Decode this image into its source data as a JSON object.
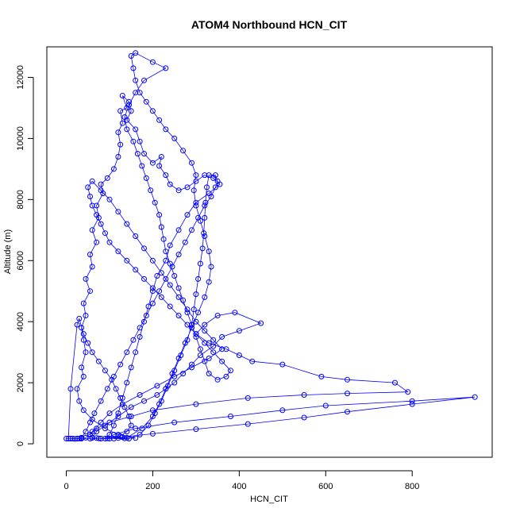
{
  "chart_data": {
    "type": "line",
    "title": "ATOM4 Northbound HCN_CIT",
    "xlabel": "HCN_CIT",
    "ylabel": "Altitude (m)",
    "xlim": [
      -45,
      985
    ],
    "ylim": [
      -440,
      13000
    ],
    "x_ticks": [
      0,
      200,
      400,
      600,
      800
    ],
    "y_ticks": [
      0,
      2000,
      4000,
      6000,
      8000,
      10000,
      12000
    ],
    "colors": {
      "series": "#0000ff",
      "axis": "#000000"
    },
    "marker": "open-circle",
    "grid": false,
    "series": [
      {
        "values": [
          [
            0,
            170
          ],
          [
            10,
            170
          ],
          [
            20,
            160
          ],
          [
            35,
            180
          ],
          [
            55,
            170
          ],
          [
            75,
            180
          ],
          [
            100,
            170
          ],
          [
            120,
            190
          ],
          [
            135,
            180
          ],
          [
            160,
            190
          ],
          [
            120,
            300
          ],
          [
            90,
            500
          ],
          [
            60,
            800
          ],
          [
            40,
            1100
          ],
          [
            30,
            1400
          ],
          [
            25,
            1800
          ],
          [
            40,
            2200
          ],
          [
            35,
            2500
          ],
          [
            45,
            3000
          ],
          [
            40,
            3400
          ],
          [
            35,
            3800
          ],
          [
            45,
            4200
          ],
          [
            40,
            4600
          ],
          [
            55,
            5000
          ],
          [
            45,
            5400
          ],
          [
            60,
            5800
          ],
          [
            55,
            6200
          ],
          [
            70,
            6600
          ],
          [
            60,
            7000
          ],
          [
            75,
            7400
          ],
          [
            70,
            7800
          ],
          [
            85,
            8200
          ],
          [
            80,
            8500
          ],
          [
            95,
            8700
          ],
          [
            110,
            9000
          ],
          [
            120,
            9400
          ],
          [
            125,
            9800
          ],
          [
            120,
            10200
          ],
          [
            130,
            10500
          ],
          [
            125,
            10900
          ],
          [
            140,
            11000
          ],
          [
            130,
            11400
          ],
          [
            145,
            11200
          ],
          [
            150,
            10900
          ],
          [
            140,
            10600
          ],
          [
            160,
            10300
          ],
          [
            170,
            9900
          ],
          [
            180,
            9500
          ],
          [
            200,
            9200
          ],
          [
            220,
            9400
          ],
          [
            215,
            9100
          ],
          [
            230,
            8800
          ],
          [
            240,
            8500
          ],
          [
            260,
            8300
          ],
          [
            280,
            8400
          ],
          [
            300,
            8600
          ],
          [
            320,
            8800
          ],
          [
            340,
            8700
          ],
          [
            355,
            8500
          ],
          [
            330,
            8200
          ],
          [
            300,
            7900
          ],
          [
            280,
            7500
          ],
          [
            260,
            7000
          ],
          [
            240,
            6500
          ],
          [
            230,
            6000
          ],
          [
            210,
            5500
          ],
          [
            200,
            5000
          ],
          [
            190,
            4500
          ],
          [
            180,
            4000
          ],
          [
            170,
            3500
          ],
          [
            160,
            3000
          ],
          [
            150,
            2500
          ],
          [
            140,
            2000
          ],
          [
            130,
            1500
          ],
          [
            120,
            1000
          ],
          [
            110,
            600
          ],
          [
            100,
            300
          ],
          [
            90,
            170
          ],
          [
            80,
            170
          ],
          [
            70,
            190
          ],
          [
            60,
            200
          ],
          [
            55,
            300
          ],
          [
            70,
            500
          ],
          [
            100,
            700
          ],
          [
            150,
            900
          ],
          [
            200,
            1100
          ],
          [
            300,
            1300
          ],
          [
            420,
            1500
          ],
          [
            550,
            1600
          ],
          [
            650,
            1650
          ],
          [
            790,
            1700
          ],
          [
            760,
            2000
          ],
          [
            650,
            2100
          ],
          [
            590,
            2200
          ],
          [
            500,
            2600
          ],
          [
            430,
            2700
          ],
          [
            400,
            2900
          ],
          [
            370,
            3100
          ],
          [
            330,
            3300
          ],
          [
            300,
            3600
          ],
          [
            320,
            3900
          ],
          [
            350,
            4200
          ],
          [
            390,
            4300
          ],
          [
            450,
            3950
          ],
          [
            400,
            3700
          ],
          [
            360,
            3500
          ],
          [
            340,
            3200
          ],
          [
            310,
            2900
          ],
          [
            290,
            2600
          ],
          [
            270,
            2300
          ],
          [
            250,
            2000
          ],
          [
            230,
            1800
          ],
          [
            210,
            1600
          ],
          [
            180,
            1400
          ],
          [
            150,
            1200
          ],
          [
            120,
            900
          ],
          [
            90,
            600
          ],
          [
            70,
            400
          ],
          [
            60,
            200
          ],
          [
            80,
            170
          ],
          [
            130,
            220
          ],
          [
            200,
            330
          ],
          [
            300,
            480
          ],
          [
            420,
            650
          ],
          [
            550,
            860
          ],
          [
            650,
            1050
          ],
          [
            800,
            1300
          ],
          [
            945,
            1530
          ],
          [
            800,
            1400
          ],
          [
            600,
            1250
          ],
          [
            500,
            1100
          ],
          [
            380,
            900
          ],
          [
            250,
            700
          ],
          [
            160,
            500
          ],
          [
            110,
            300
          ],
          [
            95,
            180
          ],
          [
            140,
            200
          ],
          [
            175,
            500
          ],
          [
            200,
            900
          ],
          [
            215,
            1300
          ],
          [
            230,
            1800
          ],
          [
            245,
            2300
          ],
          [
            260,
            2800
          ],
          [
            275,
            3300
          ],
          [
            290,
            3800
          ],
          [
            305,
            4300
          ],
          [
            320,
            4800
          ],
          [
            330,
            5300
          ],
          [
            335,
            5800
          ],
          [
            330,
            6300
          ],
          [
            320,
            6800
          ],
          [
            310,
            7300
          ],
          [
            300,
            7800
          ],
          [
            295,
            8300
          ],
          [
            300,
            8800
          ],
          [
            290,
            9200
          ],
          [
            270,
            9600
          ],
          [
            250,
            10000
          ],
          [
            230,
            10300
          ],
          [
            215,
            10600
          ],
          [
            200,
            10900
          ],
          [
            185,
            11200
          ],
          [
            170,
            11500
          ],
          [
            160,
            11900
          ],
          [
            155,
            12300
          ],
          [
            150,
            12700
          ],
          [
            160,
            12800
          ],
          [
            200,
            12500
          ],
          [
            230,
            12300
          ],
          [
            180,
            11900
          ],
          [
            160,
            11500
          ],
          [
            145,
            11100
          ],
          [
            135,
            10700
          ],
          [
            140,
            10300
          ],
          [
            155,
            9900
          ],
          [
            165,
            9500
          ],
          [
            175,
            9100
          ],
          [
            185,
            8700
          ],
          [
            195,
            8300
          ],
          [
            205,
            7900
          ],
          [
            215,
            7500
          ],
          [
            220,
            7100
          ],
          [
            225,
            6700
          ],
          [
            230,
            6300
          ],
          [
            240,
            5900
          ],
          [
            250,
            5500
          ],
          [
            260,
            5100
          ],
          [
            270,
            4700
          ],
          [
            280,
            4300
          ],
          [
            290,
            3900
          ],
          [
            300,
            3500
          ],
          [
            310,
            3100
          ],
          [
            320,
            2700
          ],
          [
            330,
            2300
          ],
          [
            350,
            2100
          ],
          [
            370,
            2200
          ],
          [
            380,
            2400
          ],
          [
            360,
            2700
          ],
          [
            340,
            3000
          ],
          [
            320,
            3300
          ],
          [
            300,
            3600
          ],
          [
            280,
            3900
          ],
          [
            260,
            4200
          ],
          [
            240,
            4500
          ],
          [
            220,
            4800
          ],
          [
            200,
            5100
          ],
          [
            180,
            5400
          ],
          [
            160,
            5700
          ],
          [
            140,
            6000
          ],
          [
            120,
            6300
          ],
          [
            100,
            6600
          ],
          [
            90,
            6900
          ],
          [
            80,
            7200
          ],
          [
            70,
            7500
          ],
          [
            60,
            7800
          ],
          [
            55,
            8100
          ],
          [
            50,
            8400
          ],
          [
            60,
            8600
          ],
          [
            80,
            8300
          ],
          [
            100,
            8000
          ],
          [
            120,
            7600
          ],
          [
            140,
            7200
          ],
          [
            160,
            6800
          ],
          [
            180,
            6400
          ],
          [
            200,
            6000
          ],
          [
            220,
            5600
          ],
          [
            240,
            5200
          ],
          [
            260,
            4800
          ],
          [
            280,
            4400
          ],
          [
            300,
            4000
          ],
          [
            320,
            3700
          ],
          [
            340,
            3400
          ],
          [
            360,
            3100
          ],
          [
            330,
            2800
          ],
          [
            290,
            2500
          ],
          [
            250,
            2200
          ],
          [
            210,
            1900
          ],
          [
            170,
            1600
          ],
          [
            130,
            1300
          ],
          [
            100,
            1000
          ],
          [
            80,
            700
          ],
          [
            60,
            400
          ],
          [
            45,
            200
          ],
          [
            30,
            170
          ],
          [
            15,
            170
          ],
          [
            5,
            170
          ],
          [
            10,
            1800
          ],
          [
            25,
            3900
          ],
          [
            30,
            4100
          ],
          [
            40,
            3600
          ],
          [
            50,
            3300
          ],
          [
            60,
            3000
          ],
          [
            75,
            2700
          ],
          [
            90,
            2400
          ],
          [
            105,
            2100
          ],
          [
            115,
            1800
          ],
          [
            125,
            1500
          ],
          [
            135,
            1200
          ],
          [
            145,
            900
          ],
          [
            150,
            600
          ],
          [
            140,
            400
          ],
          [
            125,
            250
          ],
          [
            110,
            170
          ],
          [
            145,
            170
          ],
          [
            170,
            300
          ],
          [
            190,
            600
          ],
          [
            205,
            1000
          ],
          [
            220,
            1400
          ],
          [
            235,
            1900
          ],
          [
            250,
            2400
          ],
          [
            265,
            2900
          ],
          [
            280,
            3400
          ],
          [
            290,
            3900
          ],
          [
            295,
            4400
          ],
          [
            300,
            4900
          ],
          [
            305,
            5400
          ],
          [
            310,
            5900
          ],
          [
            315,
            6400
          ],
          [
            318,
            6900
          ],
          [
            320,
            7400
          ],
          [
            322,
            7900
          ],
          [
            325,
            8400
          ],
          [
            330,
            8800
          ],
          [
            345,
            8800
          ],
          [
            350,
            8600
          ],
          [
            345,
            8400
          ],
          [
            335,
            8100
          ],
          [
            320,
            7800
          ],
          [
            305,
            7400
          ],
          [
            290,
            7000
          ],
          [
            275,
            6600
          ],
          [
            260,
            6200
          ],
          [
            245,
            5800
          ],
          [
            230,
            5400
          ],
          [
            215,
            5000
          ],
          [
            200,
            4600
          ],
          [
            185,
            4200
          ],
          [
            170,
            3800
          ],
          [
            155,
            3400
          ],
          [
            140,
            3000
          ],
          [
            125,
            2600
          ],
          [
            110,
            2200
          ],
          [
            95,
            1800
          ],
          [
            80,
            1400
          ],
          [
            65,
            1000
          ],
          [
            55,
            700
          ],
          [
            45,
            400
          ],
          [
            35,
            200
          ],
          [
            25,
            170
          ],
          [
            35,
            170
          ]
        ]
      }
    ]
  }
}
